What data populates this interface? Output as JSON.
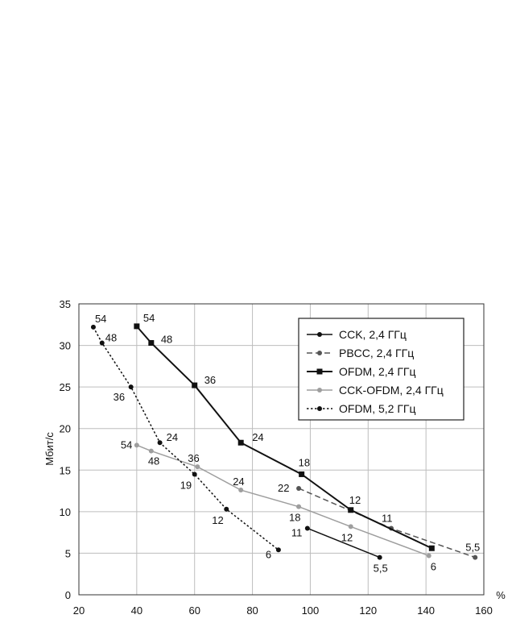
{
  "chart_data": {
    "type": "line",
    "xlabel": "%",
    "ylabel": "Мбит/с",
    "xlim": [
      20,
      160
    ],
    "ylim": [
      0,
      35
    ],
    "x_ticks": [
      20,
      40,
      60,
      80,
      100,
      120,
      140,
      160
    ],
    "y_ticks": [
      0,
      5,
      10,
      15,
      20,
      25,
      30,
      35
    ],
    "grid": true,
    "legend_position": "top-right",
    "series": [
      {
        "name": "CCK, 2,4 ГГц",
        "color": "#111111",
        "style": "solid",
        "marker": "circle",
        "x": [
          99,
          124
        ],
        "y": [
          8.0,
          4.5
        ],
        "labels": [
          "11",
          "5,5"
        ]
      },
      {
        "name": "PBCC, 2,4 ГГц",
        "color": "#555555",
        "style": "dashed",
        "marker": "circle",
        "x": [
          96,
          128,
          157
        ],
        "y": [
          12.8,
          8.0,
          4.5
        ],
        "labels": [
          "22",
          "11",
          "5,5"
        ]
      },
      {
        "name": "OFDM, 2,4 ГГц",
        "color": "#111111",
        "style": "solid-bold",
        "marker": "square",
        "x": [
          40,
          45,
          60,
          76,
          97,
          114,
          142
        ],
        "y": [
          32.3,
          30.3,
          25.2,
          18.3,
          14.5,
          10.2,
          5.6
        ],
        "labels": [
          "54",
          "48",
          "36",
          "24",
          "18",
          "12",
          ""
        ]
      },
      {
        "name": "CCK-OFDM, 2,4 ГГц",
        "color": "#9e9e9e",
        "style": "solid",
        "marker": "circle",
        "x": [
          40,
          45,
          61,
          76,
          96,
          114,
          141
        ],
        "y": [
          18.0,
          17.3,
          15.4,
          12.6,
          10.6,
          8.2,
          4.7
        ],
        "labels": [
          "54",
          "48",
          "36",
          "24",
          "18",
          "12",
          "6"
        ]
      },
      {
        "name": "OFDM, 5,2 ГГц",
        "color": "#111111",
        "style": "dotted",
        "marker": "circle",
        "x": [
          25,
          28,
          38,
          48,
          60,
          71,
          89
        ],
        "y": [
          32.2,
          30.3,
          25.0,
          18.3,
          14.5,
          10.3,
          5.4
        ],
        "labels": [
          "54",
          "48",
          "36",
          "24",
          "19",
          "12",
          "6"
        ]
      }
    ]
  }
}
